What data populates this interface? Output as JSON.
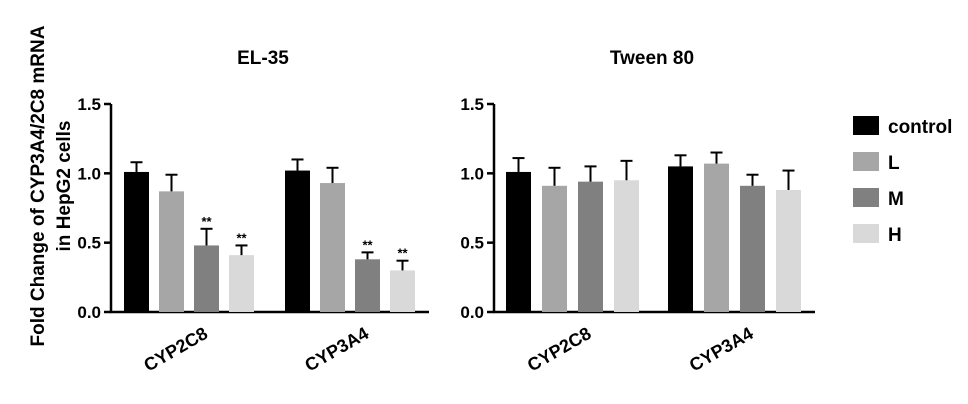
{
  "figure": {
    "ylabel_line1": "Fold Change of CYP3A4/2C8 mRNA",
    "ylabel_line2": "in HepG2 cells"
  },
  "legend": [
    {
      "label": "control",
      "color": "#000000"
    },
    {
      "label": "L",
      "color": "#a6a6a6"
    },
    {
      "label": "M",
      "color": "#808080"
    },
    {
      "label": "H",
      "color": "#d9d9d9"
    }
  ],
  "chart_data": [
    {
      "type": "bar",
      "title": "EL-35",
      "categories": [
        "CYP2C8",
        "CYP3A4"
      ],
      "ylim": [
        0,
        1.5
      ],
      "yticks": [
        "0.0",
        "0.5",
        "1.0",
        "1.5"
      ],
      "ytick_values": [
        0,
        0.5,
        1.0,
        1.5
      ],
      "series": [
        {
          "name": "control",
          "values": [
            1.01,
            1.02
          ],
          "errors": [
            0.07,
            0.08
          ],
          "sig": [
            "",
            ""
          ]
        },
        {
          "name": "L",
          "values": [
            0.87,
            0.93
          ],
          "errors": [
            0.12,
            0.11
          ],
          "sig": [
            "",
            ""
          ]
        },
        {
          "name": "M",
          "values": [
            0.48,
            0.38
          ],
          "errors": [
            0.12,
            0.05
          ],
          "sig": [
            "**",
            "**"
          ]
        },
        {
          "name": "H",
          "values": [
            0.41,
            0.3
          ],
          "errors": [
            0.07,
            0.07
          ],
          "sig": [
            "**",
            "**"
          ]
        }
      ]
    },
    {
      "type": "bar",
      "title": "Tween 80",
      "categories": [
        "CYP2C8",
        "CYP3A4"
      ],
      "ylim": [
        0,
        1.5
      ],
      "yticks": [
        "0.0",
        "0.5",
        "1.0",
        "1.5"
      ],
      "ytick_values": [
        0,
        0.5,
        1.0,
        1.5
      ],
      "series": [
        {
          "name": "control",
          "values": [
            1.01,
            1.05
          ],
          "errors": [
            0.1,
            0.08
          ],
          "sig": [
            "",
            ""
          ]
        },
        {
          "name": "L",
          "values": [
            0.91,
            1.07
          ],
          "errors": [
            0.13,
            0.08
          ],
          "sig": [
            "",
            ""
          ]
        },
        {
          "name": "M",
          "values": [
            0.94,
            0.91
          ],
          "errors": [
            0.11,
            0.08
          ],
          "sig": [
            "",
            ""
          ]
        },
        {
          "name": "H",
          "values": [
            0.95,
            0.88
          ],
          "errors": [
            0.14,
            0.14
          ],
          "sig": [
            "",
            ""
          ]
        }
      ]
    }
  ]
}
